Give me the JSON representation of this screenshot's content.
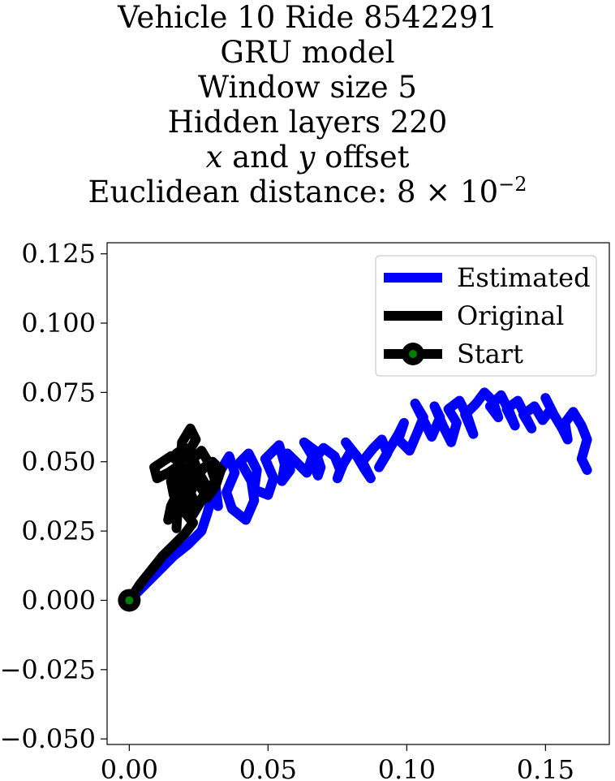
{
  "chart_data": {
    "type": "line",
    "title_lines": [
      "Vehicle 10 Ride 8542291",
      "GRU model",
      "Window size 5",
      "Hidden layers 220",
      "x and y offset",
      "Euclidean distance: 8 × 10"
    ],
    "title_exponent": "−2",
    "xlabel": "",
    "ylabel": "",
    "xlim": [
      -0.008,
      0.173
    ],
    "ylim": [
      -0.052,
      0.129
    ],
    "x_ticks": [
      0.0,
      0.05,
      0.1,
      0.15
    ],
    "x_tick_labels": [
      "0.00",
      "0.05",
      "0.10",
      "0.15"
    ],
    "y_ticks": [
      0.125,
      0.1,
      0.075,
      0.05,
      0.025,
      0.0,
      -0.025,
      -0.05
    ],
    "y_tick_labels": [
      "0.125",
      "0.100",
      "0.075",
      "0.050",
      "0.025",
      "0.000",
      "−0.025",
      "−0.050"
    ],
    "grid": false,
    "legend_placement": "top-right",
    "series": [
      {
        "name": "Estimated",
        "color": "#0000ff",
        "x": [
          0.0,
          0.006,
          0.011,
          0.016,
          0.021,
          0.026,
          0.028,
          0.03,
          0.032,
          0.031,
          0.033,
          0.036,
          0.038,
          0.035,
          0.037,
          0.042,
          0.045,
          0.044,
          0.04,
          0.043,
          0.046,
          0.045,
          0.05,
          0.052,
          0.049,
          0.054,
          0.056,
          0.055,
          0.058,
          0.057,
          0.06,
          0.064,
          0.066,
          0.063,
          0.067,
          0.069,
          0.068,
          0.066,
          0.07,
          0.074,
          0.076,
          0.075,
          0.077,
          0.08,
          0.078,
          0.082,
          0.085,
          0.087,
          0.084,
          0.088,
          0.091,
          0.093,
          0.09,
          0.094,
          0.097,
          0.099,
          0.097,
          0.101,
          0.104,
          0.106,
          0.103,
          0.107,
          0.109,
          0.112,
          0.11,
          0.113,
          0.116,
          0.118,
          0.115,
          0.119,
          0.122,
          0.124,
          0.121,
          0.125,
          0.128,
          0.131,
          0.133,
          0.13,
          0.134,
          0.137,
          0.139,
          0.136,
          0.14,
          0.143,
          0.145,
          0.142,
          0.146,
          0.149,
          0.152,
          0.15,
          0.153,
          0.156,
          0.158,
          0.157,
          0.16,
          0.163,
          0.165,
          0.163,
          0.165
        ],
        "y": [
          0.0,
          0.006,
          0.011,
          0.016,
          0.02,
          0.025,
          0.031,
          0.038,
          0.034,
          0.042,
          0.047,
          0.052,
          0.046,
          0.039,
          0.033,
          0.029,
          0.036,
          0.043,
          0.05,
          0.053,
          0.047,
          0.04,
          0.038,
          0.044,
          0.051,
          0.056,
          0.049,
          0.043,
          0.047,
          0.053,
          0.05,
          0.046,
          0.052,
          0.057,
          0.054,
          0.048,
          0.045,
          0.05,
          0.055,
          0.052,
          0.047,
          0.044,
          0.049,
          0.054,
          0.057,
          0.052,
          0.047,
          0.044,
          0.05,
          0.055,
          0.058,
          0.053,
          0.048,
          0.055,
          0.06,
          0.064,
          0.058,
          0.054,
          0.061,
          0.066,
          0.071,
          0.063,
          0.059,
          0.066,
          0.07,
          0.063,
          0.057,
          0.064,
          0.069,
          0.072,
          0.066,
          0.06,
          0.067,
          0.071,
          0.075,
          0.072,
          0.066,
          0.07,
          0.074,
          0.068,
          0.063,
          0.069,
          0.072,
          0.066,
          0.062,
          0.067,
          0.07,
          0.065,
          0.069,
          0.073,
          0.067,
          0.062,
          0.058,
          0.064,
          0.068,
          0.063,
          0.058,
          0.051,
          0.047
        ]
      },
      {
        "name": "Original",
        "color": "#000000",
        "x": [
          0.0,
          0.004,
          0.008,
          0.012,
          0.016,
          0.02,
          0.023,
          0.019,
          0.016,
          0.015,
          0.017,
          0.014,
          0.01,
          0.009,
          0.012,
          0.015,
          0.018,
          0.02,
          0.018,
          0.015,
          0.014,
          0.017,
          0.021,
          0.022,
          0.019,
          0.017,
          0.02,
          0.023,
          0.025,
          0.022,
          0.02,
          0.023,
          0.026,
          0.028,
          0.025,
          0.023,
          0.026,
          0.029,
          0.031,
          0.027,
          0.024,
          0.022,
          0.024,
          0.027,
          0.03,
          0.033,
          0.031,
          0.028,
          0.025,
          0.023,
          0.021,
          0.024,
          0.022,
          0.019,
          0.017
        ],
        "y": [
          0.0,
          0.006,
          0.011,
          0.016,
          0.02,
          0.024,
          0.028,
          0.033,
          0.038,
          0.043,
          0.048,
          0.046,
          0.044,
          0.048,
          0.05,
          0.052,
          0.05,
          0.045,
          0.04,
          0.034,
          0.029,
          0.032,
          0.037,
          0.043,
          0.048,
          0.053,
          0.055,
          0.05,
          0.044,
          0.039,
          0.034,
          0.031,
          0.036,
          0.041,
          0.046,
          0.051,
          0.054,
          0.049,
          0.043,
          0.038,
          0.034,
          0.039,
          0.044,
          0.048,
          0.05,
          0.047,
          0.041,
          0.037,
          0.042,
          0.047,
          0.053,
          0.058,
          0.062,
          0.057,
          0.026
        ]
      },
      {
        "name": "Start",
        "color": "#000000",
        "marker_face": "#008000",
        "x": [
          0.0
        ],
        "y": [
          0.0
        ]
      }
    ]
  }
}
